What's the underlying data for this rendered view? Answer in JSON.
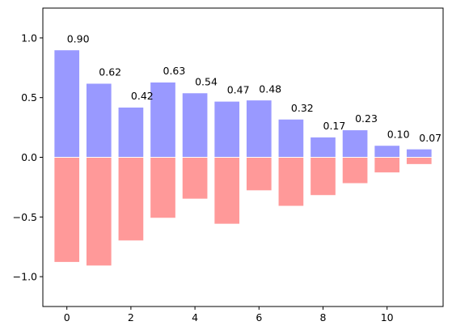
{
  "chart_data": {
    "type": "bar",
    "title": "",
    "xlabel": "",
    "ylabel": "",
    "x": [
      0,
      1,
      2,
      3,
      4,
      5,
      6,
      7,
      8,
      9,
      10,
      11
    ],
    "xlim": [
      -0.75,
      11.75
    ],
    "ylim": [
      -1.25,
      1.25
    ],
    "xticks": [
      0,
      2,
      4,
      6,
      8,
      10
    ],
    "xtick_labels": [
      "0",
      "2",
      "4",
      "6",
      "8",
      "10"
    ],
    "yticks": [
      1.0,
      0.5,
      0.0,
      -0.5,
      -1.0
    ],
    "ytick_labels": [
      "1.0",
      "0.5",
      "0.0",
      "−0.5",
      "−1.0"
    ],
    "grid": false,
    "series": [
      {
        "color": "#9999ff",
        "values": [
          0.9,
          0.62,
          0.42,
          0.63,
          0.54,
          0.47,
          0.48,
          0.32,
          0.17,
          0.23,
          0.1,
          0.07
        ],
        "labels": [
          "0.90",
          "0.62",
          "0.42",
          "0.63",
          "0.54",
          "0.47",
          "0.48",
          "0.32",
          "0.17",
          "0.23",
          "0.10",
          "0.07"
        ]
      },
      {
        "color": "#ff9999",
        "values": [
          -0.88,
          -0.91,
          -0.7,
          -0.51,
          -0.35,
          -0.56,
          -0.28,
          -0.41,
          -0.32,
          -0.22,
          -0.13,
          -0.06
        ]
      }
    ]
  }
}
